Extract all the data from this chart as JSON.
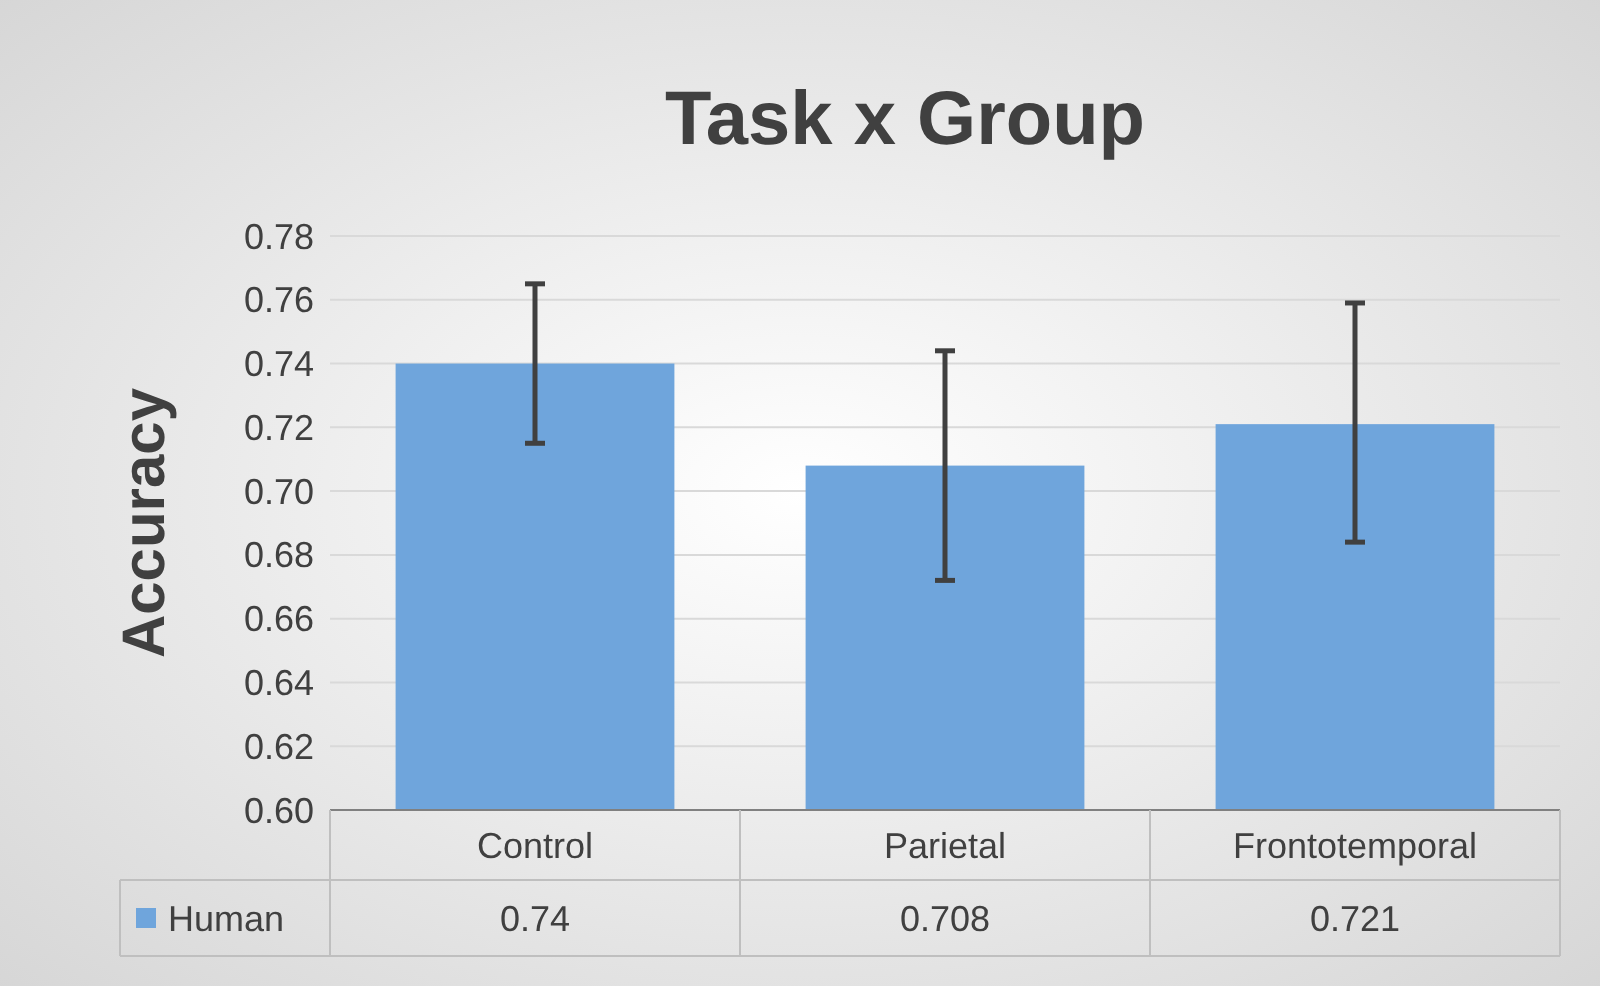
{
  "chart_data": {
    "type": "bar",
    "title": "Task x Group",
    "ylabel": "Accuracy",
    "categories": [
      "Control",
      "Parietal",
      "Frontotemporal"
    ],
    "series": [
      {
        "name": "Human",
        "color": "#6fa5dc",
        "values": [
          0.74,
          0.708,
          0.721
        ],
        "errors": [
          [
            0.715,
            0.765
          ],
          [
            0.672,
            0.744
          ],
          [
            0.684,
            0.759
          ]
        ]
      }
    ],
    "ylim": [
      0.6,
      0.78
    ],
    "yticks": [
      {
        "value": 0.6,
        "label": "0.60"
      },
      {
        "value": 0.62,
        "label": "0.62"
      },
      {
        "value": 0.64,
        "label": "0.64"
      },
      {
        "value": 0.66,
        "label": "0.66"
      },
      {
        "value": 0.68,
        "label": "0.68"
      },
      {
        "value": 0.7,
        "label": "0.70"
      },
      {
        "value": 0.72,
        "label": "0.72"
      },
      {
        "value": 0.74,
        "label": "0.74"
      },
      {
        "value": 0.76,
        "label": "0.76"
      },
      {
        "value": 0.78,
        "label": "0.78"
      }
    ],
    "grid": "y",
    "data_labels": true,
    "legend": "bottom"
  }
}
